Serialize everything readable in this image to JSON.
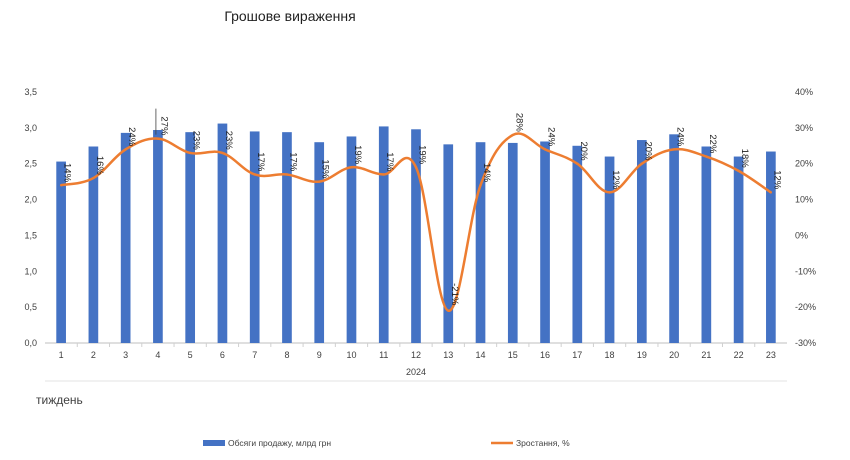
{
  "chart_data": {
    "type": "bar+line",
    "title": "Грошове вираження",
    "x_group_label": "2024",
    "x_unit_label": "тиждень",
    "categories": [
      "1",
      "2",
      "3",
      "4",
      "5",
      "6",
      "7",
      "8",
      "9",
      "10",
      "11",
      "12",
      "13",
      "14",
      "15",
      "16",
      "17",
      "18",
      "19",
      "20",
      "21",
      "22",
      "23"
    ],
    "series": [
      {
        "name": "Обсяги продажу, млрд грн",
        "type": "bar",
        "axis": "left",
        "color": "#4472c4",
        "values": [
          2.53,
          2.74,
          2.93,
          2.97,
          2.94,
          3.06,
          2.95,
          2.94,
          2.8,
          2.88,
          3.02,
          2.98,
          2.77,
          2.8,
          2.79,
          2.81,
          2.75,
          2.6,
          2.83,
          2.91,
          2.74,
          2.6,
          2.67
        ]
      },
      {
        "name": "Зростання, %",
        "type": "line",
        "axis": "right",
        "color": "#ed7d31",
        "values": [
          14,
          16,
          24,
          27,
          23,
          23,
          17,
          17,
          15,
          19,
          17,
          19,
          -21,
          14,
          28,
          24,
          20,
          12,
          20,
          24,
          22,
          18,
          12
        ]
      }
    ],
    "y_left": {
      "min": 0,
      "max": 3.5,
      "step": 0.5,
      "ticks": [
        "0,0",
        "0,5",
        "1,0",
        "1,5",
        "2,0",
        "2,5",
        "3,0",
        "3,5"
      ]
    },
    "y_right": {
      "min": -30,
      "max": 40,
      "step": 10,
      "ticks": [
        "-30%",
        "-20%",
        "-10%",
        "0%",
        "10%",
        "20%",
        "30%",
        "40%"
      ]
    },
    "data_labels": [
      "14%",
      "16%",
      "24%",
      "27%",
      "23%",
      "23%",
      "17%",
      "17%",
      "15%",
      "19%",
      "17%",
      "19%",
      "-21%",
      "14%",
      "28%",
      "24%",
      "20%",
      "12%",
      "20%",
      "24%",
      "22%",
      "18%",
      "12%"
    ],
    "legend_position": "bottom",
    "grid": false
  }
}
